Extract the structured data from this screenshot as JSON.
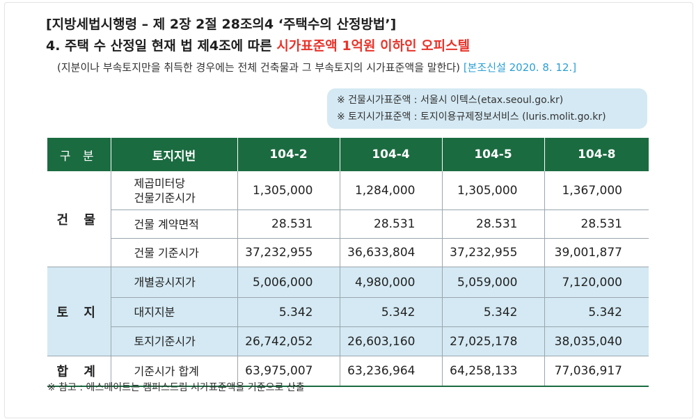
{
  "header": {
    "title_line1": "[지방세법시행령 – 제 2장 2절 28조의4 ‘주택수의 산정방법’]",
    "title_line2_prefix": "4. 주택 수 산정일 현재 법 제4조에 따른 ",
    "title_line2_highlight": "시가표준액 1억원 이하인 오피스텔",
    "subnote": "(지분이나 부속토지만을 취득한 경우에는 전체 건축물과 그 부속토지의 시가표준액을 말한다)",
    "subnote_date": "[본조신설 2020. 8. 12.]",
    "highlight_color": "#e8332a",
    "date_color": "#2a9fd6"
  },
  "sources": {
    "line1": "※ 건물시가표준액 : 서울시 이텍스(etax.seoul.go.kr)",
    "line2": "※ 토지시가표준액 : 토지이용규제정보서비스 (luris.molit.go.kr)"
  },
  "table": {
    "header_color": "#1b6b40",
    "land_row_color": "#d4e9f3",
    "columns": [
      "구 분",
      "토지지번",
      "104-2",
      "104-4",
      "104-5",
      "104-8"
    ],
    "groups": {
      "building": "건 물",
      "land": "토 지",
      "total": "합 계"
    },
    "rows": [
      {
        "item": "제곱미터당\n건물기준시가",
        "values": [
          "1,305,000",
          "1,284,000",
          "1,305,000",
          "1,367,000"
        ]
      },
      {
        "item": "건물 계약면적",
        "values": [
          "28.531",
          "28.531",
          "28.531",
          "28.531"
        ]
      },
      {
        "item": "건물 기준시가",
        "values": [
          "37,232,955",
          "36,633,804",
          "37,232,955",
          "39,001,877"
        ]
      },
      {
        "item": "개별공시지가",
        "values": [
          "5,006,000",
          "4,980,000",
          "5,059,000",
          "7,120,000"
        ]
      },
      {
        "item": "대지지분",
        "values": [
          "5.342",
          "5.342",
          "5.342",
          "5.342"
        ]
      },
      {
        "item": "토지기준시가",
        "values": [
          "26,742,052",
          "26,603,160",
          "27,025,178",
          "38,035,040"
        ]
      },
      {
        "item": "기준시가 합계",
        "values": [
          "63,975,007",
          "63,236,964",
          "64,258,133",
          "77,036,917"
        ]
      }
    ]
  },
  "footnote": "※ 참고 : 에스메이트는 캠퍼스드림 시가표준액을 기준으로 산출"
}
